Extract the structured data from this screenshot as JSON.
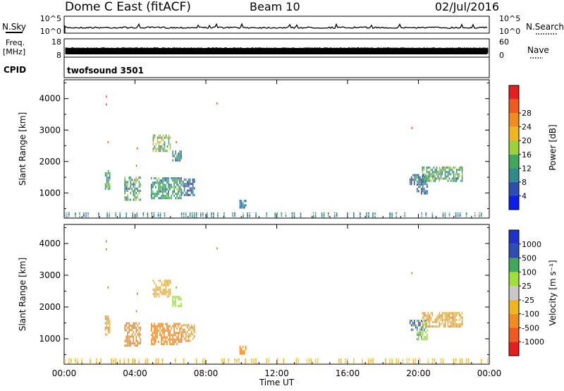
{
  "header": {
    "title": "Dome C East (fitACF)",
    "beam": "Beam 10",
    "date": "02/Jul/2016"
  },
  "panels": {
    "nsky_label": "N.Sky",
    "nsky_tick_top": "10^5",
    "nsky_tick_bottom": "10^0",
    "nsearch_label": "N.Search",
    "nsearch_tick_top": "10^5",
    "nsearch_tick_bottom": "10^0",
    "freq_label_1": "Freq.",
    "freq_label_2": "[MHz]",
    "freq_tick_top": "18",
    "freq_tick_bottom": "8",
    "nave_label": "Nave",
    "nave_tick_top": "60",
    "nave_tick_bottom": "0",
    "cpid_label": "CPID",
    "cpid_value": "twofsound 3501"
  },
  "colors": {
    "power": [
      "#0a1ef0",
      "#2d4db3",
      "#2f8a8a",
      "#3fa85a",
      "#9bd23c",
      "#f0b41e",
      "#f08c1e",
      "#f05a1e",
      "#e61e1e"
    ],
    "velocity": [
      "#e61e1e",
      "#f05a1e",
      "#f08c1e",
      "#f0b41e",
      "#c8c8c8",
      "#a0e03c",
      "#3fa85a",
      "#2d4db3",
      "#1e32c8"
    ]
  },
  "chart_data": [
    {
      "type": "heatmap",
      "name": "power",
      "xlabel": "",
      "ylabel": "Slant Range [km]",
      "xlim": [
        0,
        24
      ],
      "ylim": [
        200,
        4600
      ],
      "yticks": [
        1000,
        2000,
        3000,
        4000
      ],
      "colorbar_label": "Power [dB]",
      "colorbar_ticks": [
        "4",
        "8",
        "12",
        "16",
        "20",
        "24",
        "28"
      ],
      "colorbar_range": [
        0,
        32
      ],
      "blobs": [
        {
          "t0": 2.3,
          "t1": 2.6,
          "r0": 1100,
          "r1": 1700,
          "v": 13
        },
        {
          "t0": 3.4,
          "t1": 4.3,
          "r0": 750,
          "r1": 1500,
          "v": 14
        },
        {
          "t0": 4.9,
          "t1": 6.6,
          "r0": 800,
          "r1": 1500,
          "v": 12
        },
        {
          "t0": 6.6,
          "t1": 7.4,
          "r0": 900,
          "r1": 1400,
          "v": 8
        },
        {
          "t0": 5.0,
          "t1": 6.0,
          "r0": 2300,
          "r1": 2800,
          "v": 17
        },
        {
          "t0": 6.1,
          "t1": 6.6,
          "r0": 2000,
          "r1": 2300,
          "v": 11
        },
        {
          "t0": 19.5,
          "t1": 20.4,
          "r0": 1250,
          "r1": 1600,
          "v": 9
        },
        {
          "t0": 20.2,
          "t1": 22.5,
          "r0": 1350,
          "r1": 1800,
          "v": 14
        },
        {
          "t0": 19.9,
          "t1": 20.5,
          "r0": 950,
          "r1": 1250,
          "v": 8
        },
        {
          "t0": 9.9,
          "t1": 10.3,
          "r0": 500,
          "r1": 750,
          "v": 8
        },
        {
          "t0": 0.0,
          "t1": 24.0,
          "r0": 220,
          "r1": 380,
          "v": 10
        }
      ]
    },
    {
      "type": "heatmap",
      "name": "velocity",
      "xlabel": "Time UT",
      "ylabel": "Slant Range [km]",
      "xlim": [
        0,
        24
      ],
      "ylim": [
        200,
        4600
      ],
      "xticks": [
        "00:00",
        "04:00",
        "08:00",
        "12:00",
        "16:00",
        "20:00",
        "00:00"
      ],
      "yticks": [
        1000,
        2000,
        3000,
        4000
      ],
      "colorbar_label": "Velocity [m s⁻¹]",
      "colorbar_ticks": [
        "-1000",
        "-500",
        "-100",
        "-25",
        "25",
        "100",
        "500",
        "1000"
      ],
      "blobs": [
        {
          "t0": 2.3,
          "t1": 2.6,
          "r0": 1100,
          "r1": 1700,
          "v": -100
        },
        {
          "t0": 3.4,
          "t1": 4.3,
          "r0": 750,
          "r1": 1500,
          "v": -300
        },
        {
          "t0": 4.9,
          "t1": 6.6,
          "r0": 800,
          "r1": 1500,
          "v": -200
        },
        {
          "t0": 6.6,
          "t1": 7.4,
          "r0": 900,
          "r1": 1400,
          "v": -100
        },
        {
          "t0": 5.0,
          "t1": 6.0,
          "r0": 2300,
          "r1": 2800,
          "v": -50
        },
        {
          "t0": 6.1,
          "t1": 6.6,
          "r0": 2000,
          "r1": 2300,
          "v": 50
        },
        {
          "t0": 19.5,
          "t1": 20.4,
          "r0": 1250,
          "r1": 1600,
          "v": 500
        },
        {
          "t0": 20.2,
          "t1": 22.5,
          "r0": 1350,
          "r1": 1800,
          "v": -80
        },
        {
          "t0": 19.9,
          "t1": 20.5,
          "r0": 950,
          "r1": 1250,
          "v": 80
        },
        {
          "t0": 9.9,
          "t1": 10.3,
          "r0": 500,
          "r1": 750,
          "v": -300
        },
        {
          "t0": 0.0,
          "t1": 24.0,
          "r0": 220,
          "r1": 380,
          "v": -40
        }
      ]
    }
  ]
}
